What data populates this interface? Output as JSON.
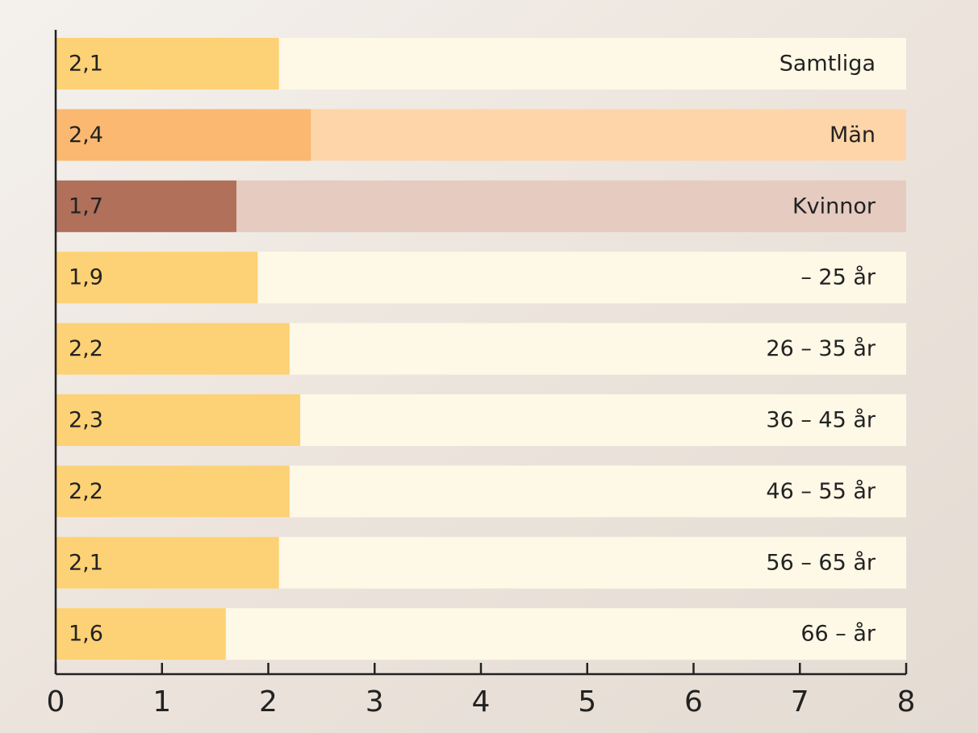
{
  "chart_data": {
    "type": "bar",
    "orientation": "horizontal",
    "categories": [
      "Samtliga",
      "Män",
      "Kvinnor",
      "– 25 år",
      "26 – 35 år",
      "36 – 45 år",
      "46 – 55 år",
      "56 – 65 år",
      "66 – år"
    ],
    "values": [
      2.1,
      2.4,
      1.7,
      1.9,
      2.2,
      2.3,
      2.2,
      2.1,
      1.6
    ],
    "value_labels": [
      "2,1",
      "2,4",
      "1,7",
      "1,9",
      "2,2",
      "2,3",
      "2,2",
      "2,1",
      "1,6"
    ],
    "colors": [
      "#fdd175",
      "#fbb870",
      "#b0705a",
      "#fdd175",
      "#fdd175",
      "#fdd175",
      "#fdd175",
      "#fdd175",
      "#fdd175"
    ],
    "track_colors": [
      "#fef8e6",
      "#fdd5a8",
      "#e5cbc0",
      "#fef8e6",
      "#fef8e6",
      "#fef8e6",
      "#fef8e6",
      "#fef8e6",
      "#fef8e6"
    ],
    "xlim": [
      0,
      8
    ],
    "xticks": [
      0,
      1,
      2,
      3,
      4,
      5,
      6,
      7,
      8
    ]
  }
}
